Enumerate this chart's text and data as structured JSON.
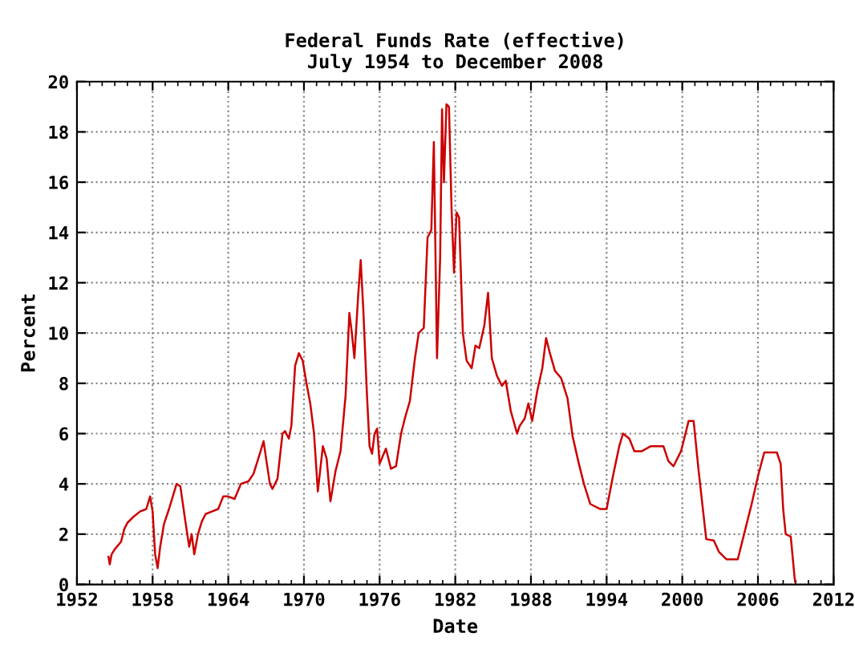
{
  "chart_data": {
    "type": "line",
    "title": "Federal Funds Rate (effective)\nJuly 1954 to December 2008",
    "xlabel": "Date",
    "ylabel": "Percent",
    "xlim": [
      1952,
      2012
    ],
    "xticks": [
      1952,
      1958,
      1964,
      1970,
      1976,
      1982,
      1988,
      1994,
      2000,
      2006,
      2012
    ],
    "ylim": [
      0,
      20
    ],
    "yticks": [
      0,
      2,
      4,
      6,
      8,
      10,
      12,
      14,
      16,
      18,
      20
    ],
    "grid": true,
    "legend": false,
    "marker": "none",
    "line_style": "solid",
    "series": [
      {
        "color": "#cc0000",
        "x": [
          1954.5,
          1954.6,
          1954.75,
          1955.0,
          1955.5,
          1955.75,
          1956.0,
          1956.5,
          1957.0,
          1957.5,
          1957.8,
          1958.0,
          1958.2,
          1958.4,
          1958.6,
          1958.9,
          1959.3,
          1959.6,
          1959.9,
          1960.2,
          1960.6,
          1960.9,
          1961.1,
          1961.3,
          1961.6,
          1961.9,
          1962.2,
          1962.7,
          1963.2,
          1963.6,
          1964.0,
          1964.5,
          1965.0,
          1965.6,
          1966.0,
          1966.5,
          1966.8,
          1967.0,
          1967.3,
          1967.5,
          1967.9,
          1968.3,
          1968.5,
          1968.8,
          1969.0,
          1969.3,
          1969.6,
          1969.9,
          1970.2,
          1970.5,
          1970.8,
          1971.1,
          1971.5,
          1971.8,
          1972.1,
          1972.5,
          1972.9,
          1973.3,
          1973.6,
          1973.8,
          1974.0,
          1974.3,
          1974.5,
          1974.7,
          1975.0,
          1975.2,
          1975.4,
          1975.6,
          1975.8,
          1976.0,
          1976.5,
          1976.9,
          1977.3,
          1977.7,
          1978.0,
          1978.4,
          1978.8,
          1979.1,
          1979.5,
          1979.8,
          1980.1,
          1980.3,
          1980.55,
          1980.8,
          1980.95,
          1981.1,
          1981.3,
          1981.5,
          1981.7,
          1981.9,
          1982.1,
          1982.3,
          1982.6,
          1982.9,
          1983.3,
          1983.6,
          1983.9,
          1984.3,
          1984.6,
          1984.9,
          1985.3,
          1985.7,
          1986.0,
          1986.4,
          1986.9,
          1987.1,
          1987.5,
          1987.8,
          1988.1,
          1988.5,
          1988.9,
          1989.2,
          1989.5,
          1989.9,
          1990.4,
          1990.9,
          1991.3,
          1991.8,
          1992.2,
          1992.7,
          1993.5,
          1994.0,
          1994.5,
          1995.0,
          1995.3,
          1995.8,
          1996.2,
          1996.8,
          1997.5,
          1998.5,
          1998.9,
          1999.3,
          1999.9,
          2000.5,
          2000.9,
          2001.3,
          2001.9,
          2002.5,
          2002.9,
          2003.5,
          2004.4,
          2004.9,
          2005.5,
          2006.0,
          2006.5,
          2007.5,
          2007.8,
          2008.0,
          2008.2,
          2008.6,
          2008.9,
          2008.95
        ],
        "values": [
          1.1,
          0.8,
          1.2,
          1.4,
          1.7,
          2.2,
          2.45,
          2.7,
          2.9,
          3.0,
          3.5,
          2.9,
          1.2,
          0.65,
          1.5,
          2.4,
          3.0,
          3.5,
          4.0,
          3.9,
          2.5,
          1.5,
          2.0,
          1.2,
          2.0,
          2.5,
          2.8,
          2.9,
          3.0,
          3.5,
          3.5,
          3.4,
          4.0,
          4.1,
          4.4,
          5.2,
          5.7,
          5.0,
          4.0,
          3.8,
          4.2,
          6.0,
          6.1,
          5.8,
          6.3,
          8.7,
          9.2,
          8.9,
          8.0,
          7.2,
          6.0,
          3.7,
          5.5,
          5.0,
          3.3,
          4.5,
          5.3,
          7.5,
          10.8,
          10.0,
          9.0,
          11.5,
          12.9,
          11.0,
          7.5,
          5.5,
          5.2,
          6.0,
          6.2,
          4.8,
          5.4,
          4.6,
          4.7,
          6.0,
          6.6,
          7.3,
          9.0,
          10.0,
          10.2,
          13.8,
          14.1,
          17.6,
          9.0,
          13.0,
          18.9,
          16.0,
          19.1,
          19.0,
          15.0,
          12.4,
          14.8,
          14.6,
          10.0,
          8.9,
          8.6,
          9.5,
          9.4,
          10.3,
          11.6,
          9.0,
          8.3,
          7.9,
          8.1,
          6.9,
          6.0,
          6.3,
          6.6,
          7.2,
          6.5,
          7.7,
          8.6,
          9.8,
          9.2,
          8.5,
          8.2,
          7.4,
          5.9,
          4.8,
          4.0,
          3.2,
          3.0,
          3.0,
          4.3,
          5.5,
          6.0,
          5.8,
          5.3,
          5.3,
          5.5,
          5.5,
          4.9,
          4.7,
          5.3,
          6.5,
          6.5,
          4.5,
          1.8,
          1.75,
          1.3,
          1.0,
          1.0,
          2.0,
          3.2,
          4.3,
          5.25,
          5.25,
          4.8,
          3.0,
          2.0,
          1.9,
          0.3,
          0.1
        ]
      }
    ]
  }
}
